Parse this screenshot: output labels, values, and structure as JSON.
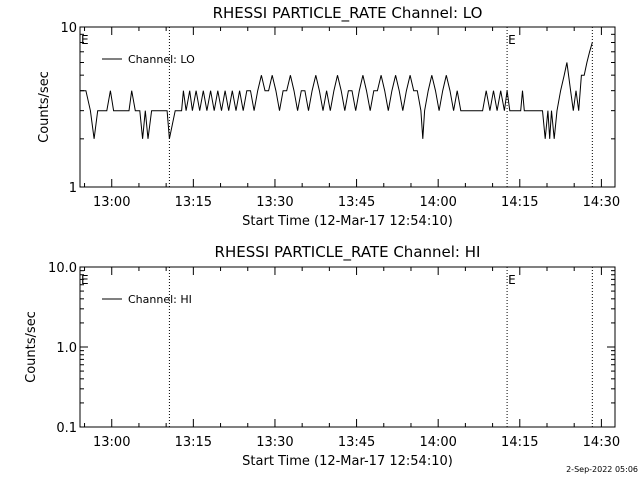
{
  "chart_data": [
    {
      "type": "line",
      "title": "RHESSI PARTICLE_RATE Channel: LO",
      "xlabel": "Start Time (12-Mar-17 12:54:10)",
      "ylabel": "Counts/sec",
      "yscale": "log",
      "ylim": [
        1,
        10
      ],
      "y_ticks": [
        "10",
        "1"
      ],
      "x_range_minutes": [
        "12:54:10",
        "14:32:30"
      ],
      "x_ticks": [
        "13:00",
        "13:15",
        "13:30",
        "13:45",
        "14:00",
        "14:15",
        "14:30"
      ],
      "legend": {
        "position": "top-left",
        "entries": [
          "Channel: LO"
        ]
      },
      "markers": [
        {
          "label": "E",
          "time": "12:54:10"
        },
        {
          "label": "",
          "time": "13:10:36"
        },
        {
          "label": "E",
          "time": "14:12:40"
        },
        {
          "label": "",
          "time": "14:28:20"
        }
      ],
      "series": [
        {
          "name": "Channel: LO",
          "values": [
            [
              "12:54:10",
              4
            ],
            [
              "12:55:15",
              4
            ],
            [
              "12:56:05",
              3
            ],
            [
              "12:56:45",
              2
            ],
            [
              "12:57:25",
              3
            ],
            [
              "12:58:30",
              3
            ],
            [
              "12:59:05",
              3
            ],
            [
              "12:59:45",
              4
            ],
            [
              "13:00:20",
              3
            ],
            [
              "13:01:10",
              3
            ],
            [
              "13:02:10",
              3
            ],
            [
              "13:03:10",
              3
            ],
            [
              "13:03:40",
              4
            ],
            [
              "13:04:20",
              3
            ],
            [
              "13:05:10",
              3
            ],
            [
              "13:05:40",
              2
            ],
            [
              "13:06:10",
              3
            ],
            [
              "13:06:40",
              2
            ],
            [
              "13:07:20",
              3
            ],
            [
              "13:08:30",
              3
            ],
            [
              "13:09:10",
              3
            ],
            [
              "13:10:10",
              3
            ],
            [
              "13:10:36",
              2
            ],
            [
              "13:11:40",
              3
            ],
            [
              "13:12:50",
              3
            ],
            [
              "13:13:10",
              4
            ],
            [
              "13:13:40",
              3
            ],
            [
              "13:14:20",
              4
            ],
            [
              "13:14:50",
              3
            ],
            [
              "13:15:30",
              4
            ],
            [
              "13:16:10",
              3
            ],
            [
              "13:16:50",
              4
            ],
            [
              "13:17:30",
              3
            ],
            [
              "13:18:10",
              4
            ],
            [
              "13:18:50",
              3
            ],
            [
              "13:19:30",
              4
            ],
            [
              "13:20:10",
              3
            ],
            [
              "13:20:50",
              4
            ],
            [
              "13:21:30",
              3
            ],
            [
              "13:22:10",
              4
            ],
            [
              "13:22:50",
              3
            ],
            [
              "13:23:30",
              4
            ],
            [
              "13:24:10",
              3
            ],
            [
              "13:24:50",
              4
            ],
            [
              "13:25:30",
              4
            ],
            [
              "13:26:10",
              3
            ],
            [
              "13:26:50",
              4
            ],
            [
              "13:27:30",
              5
            ],
            [
              "13:28:10",
              4
            ],
            [
              "13:28:50",
              4
            ],
            [
              "13:29:30",
              5
            ],
            [
              "13:30:10",
              4
            ],
            [
              "13:30:50",
              3
            ],
            [
              "13:31:30",
              4
            ],
            [
              "13:32:10",
              4
            ],
            [
              "13:32:50",
              5
            ],
            [
              "13:33:30",
              4
            ],
            [
              "13:34:10",
              3
            ],
            [
              "13:34:50",
              4
            ],
            [
              "13:35:30",
              4
            ],
            [
              "13:36:10",
              3
            ],
            [
              "13:36:50",
              4
            ],
            [
              "13:37:30",
              5
            ],
            [
              "13:38:10",
              4
            ],
            [
              "13:38:50",
              3
            ],
            [
              "13:39:30",
              4
            ],
            [
              "13:40:10",
              3
            ],
            [
              "13:40:50",
              4
            ],
            [
              "13:41:30",
              5
            ],
            [
              "13:42:10",
              4
            ],
            [
              "13:42:50",
              3
            ],
            [
              "13:43:30",
              4
            ],
            [
              "13:44:10",
              4
            ],
            [
              "13:44:50",
              3
            ],
            [
              "13:45:30",
              4
            ],
            [
              "13:46:10",
              5
            ],
            [
              "13:46:50",
              4
            ],
            [
              "13:47:30",
              3
            ],
            [
              "13:48:10",
              4
            ],
            [
              "13:48:50",
              4
            ],
            [
              "13:49:30",
              5
            ],
            [
              "13:50:10",
              4
            ],
            [
              "13:50:50",
              3
            ],
            [
              "13:51:30",
              4
            ],
            [
              "13:52:10",
              5
            ],
            [
              "13:52:50",
              4
            ],
            [
              "13:53:30",
              3
            ],
            [
              "13:54:10",
              4
            ],
            [
              "13:54:50",
              5
            ],
            [
              "13:55:30",
              4
            ],
            [
              "13:56:10",
              4
            ],
            [
              "13:56:50",
              3
            ],
            [
              "13:57:10",
              2
            ],
            [
              "13:57:30",
              3
            ],
            [
              "13:58:10",
              4
            ],
            [
              "13:58:50",
              5
            ],
            [
              "13:59:30",
              4
            ],
            [
              "14:00:10",
              3
            ],
            [
              "14:00:50",
              4
            ],
            [
              "14:01:30",
              5
            ],
            [
              "14:02:10",
              4
            ],
            [
              "14:02:50",
              3
            ],
            [
              "14:03:30",
              4
            ],
            [
              "14:04:10",
              3
            ],
            [
              "14:04:50",
              3
            ],
            [
              "14:05:30",
              3
            ],
            [
              "14:06:10",
              3
            ],
            [
              "14:06:50",
              3
            ],
            [
              "14:07:30",
              3
            ],
            [
              "14:08:10",
              3
            ],
            [
              "14:08:50",
              4
            ],
            [
              "14:09:30",
              3
            ],
            [
              "14:10:10",
              4
            ],
            [
              "14:10:50",
              3
            ],
            [
              "14:11:30",
              4
            ],
            [
              "14:12:10",
              3
            ],
            [
              "14:12:40",
              4
            ],
            [
              "14:13:10",
              3
            ],
            [
              "14:13:50",
              3
            ],
            [
              "14:14:30",
              3
            ],
            [
              "14:15:10",
              3
            ],
            [
              "14:15:30",
              4
            ],
            [
              "14:15:50",
              3
            ],
            [
              "14:16:30",
              3
            ],
            [
              "14:17:10",
              3
            ],
            [
              "14:17:50",
              3
            ],
            [
              "14:18:30",
              3
            ],
            [
              "14:19:10",
              3
            ],
            [
              "14:19:40",
              2
            ],
            [
              "14:20:10",
              3
            ],
            [
              "14:20:30",
              2
            ],
            [
              "14:20:50",
              3
            ],
            [
              "14:21:20",
              2
            ],
            [
              "14:21:50",
              3
            ],
            [
              "14:22:30",
              4
            ],
            [
              "14:23:10",
              5
            ],
            [
              "14:23:40",
              6
            ],
            [
              "14:24:20",
              4
            ],
            [
              "14:24:50",
              3
            ],
            [
              "14:25:20",
              4
            ],
            [
              "14:25:50",
              3
            ],
            [
              "14:26:20",
              5
            ],
            [
              "14:26:50",
              5
            ],
            [
              "14:27:20",
              6
            ],
            [
              "14:27:50",
              7
            ],
            [
              "14:28:20",
              8
            ]
          ]
        }
      ]
    },
    {
      "type": "line",
      "title": "RHESSI PARTICLE_RATE Channel: HI",
      "xlabel": "Start Time (12-Mar-17 12:54:10)",
      "ylabel": "Counts/sec",
      "yscale": "log",
      "ylim": [
        0.1,
        10
      ],
      "y_ticks": [
        "10.0",
        "1.0",
        "0.1"
      ],
      "x_range_minutes": [
        "12:54:10",
        "14:32:30"
      ],
      "x_ticks": [
        "13:00",
        "13:15",
        "13:30",
        "13:45",
        "14:00",
        "14:15",
        "14:30"
      ],
      "legend": {
        "position": "top-left",
        "entries": [
          "Channel: HI"
        ]
      },
      "markers": [
        {
          "label": "E",
          "time": "12:54:10"
        },
        {
          "label": "",
          "time": "13:10:36"
        },
        {
          "label": "E",
          "time": "14:12:40"
        },
        {
          "label": "",
          "time": "14:28:20"
        }
      ],
      "series": [
        {
          "name": "Channel: HI",
          "values": []
        }
      ]
    }
  ],
  "footer": {
    "timestamp": "2-Sep-2022 05:06"
  }
}
